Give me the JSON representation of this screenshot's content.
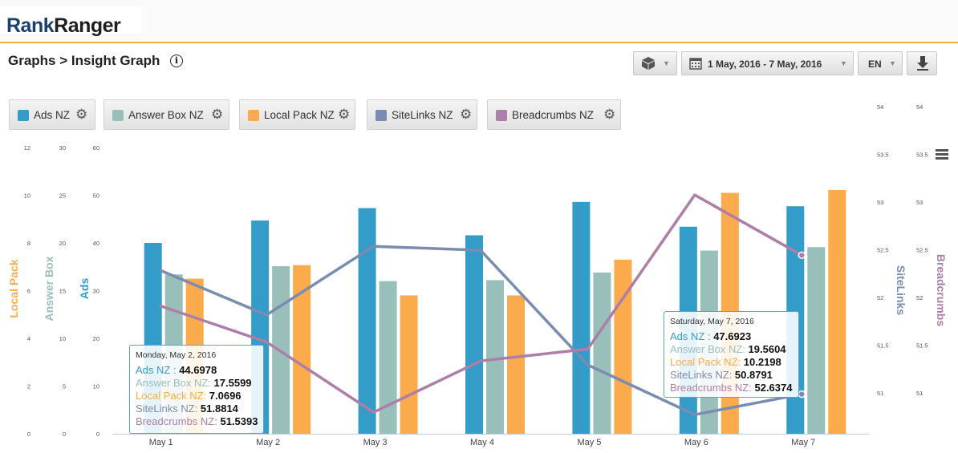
{
  "header": {
    "logo_rank": "Rank",
    "logo_ranger": "Ranger"
  },
  "page": {
    "title": "Graphs > Insight Graph",
    "info_icon": "info-icon"
  },
  "controls": {
    "date_range": "1 May, 2016 - 7 May, 2016",
    "language": "EN",
    "cube_icon": "cube-icon",
    "calendar_icon": "calendar-icon",
    "download_icon": "download-icon"
  },
  "legend": [
    {
      "label": "Ads NZ",
      "color": "#339cc8"
    },
    {
      "label": "Answer Box NZ",
      "color": "#98bfba"
    },
    {
      "label": "Local Pack NZ",
      "color": "#fbab4b"
    },
    {
      "label": "SiteLinks NZ",
      "color": "#7a8cb0"
    },
    {
      "label": "Breadcrumbs NZ",
      "color": "#ad7fa8"
    }
  ],
  "axes": {
    "local_pack": {
      "title": "Local Pack",
      "ticks": [
        "0",
        "2",
        "4",
        "6",
        "8",
        "10",
        "12"
      ]
    },
    "answer_box": {
      "title": "Answer Box",
      "ticks": [
        "0",
        "5",
        "10",
        "15",
        "20",
        "25",
        "30"
      ]
    },
    "ads": {
      "title": "Ads",
      "ticks": [
        "0",
        "10",
        "20",
        "30",
        "40",
        "50",
        "60"
      ]
    },
    "sitelinks": {
      "title": "SiteLinks",
      "ticks": [
        "51",
        "51.5",
        "52",
        "52.5",
        "53",
        "53.5",
        "54"
      ]
    },
    "breadcrumbs": {
      "title": "Breadcrumbs",
      "ticks": [
        "51",
        "51.5",
        "52",
        "52.5",
        "53",
        "53.5",
        "54"
      ]
    }
  },
  "chart_data": {
    "type": "bar",
    "categories": [
      "May 1",
      "May 2",
      "May 3",
      "May 4",
      "May 5",
      "May 6",
      "May 7"
    ],
    "series": [
      {
        "name": "Ads NZ",
        "type": "bar",
        "axis": "ads",
        "ylim": [
          0,
          60
        ],
        "color": "#339cc8",
        "values": [
          40.0,
          44.6978,
          47.3,
          41.6,
          48.6,
          43.4,
          47.6923
        ]
      },
      {
        "name": "Answer Box NZ",
        "type": "bar",
        "axis": "answer_box",
        "ylim": [
          0,
          30
        ],
        "color": "#98bfba",
        "values": [
          16.7,
          17.5599,
          16.0,
          16.1,
          16.9,
          19.2,
          19.5604
        ]
      },
      {
        "name": "Local Pack NZ",
        "type": "bar",
        "axis": "local_pack",
        "ylim": [
          0,
          12
        ],
        "color": "#fbab4b",
        "values": [
          6.5,
          7.0696,
          5.8,
          5.8,
          7.3,
          10.1,
          10.2198
        ]
      },
      {
        "name": "SiteLinks NZ",
        "type": "line",
        "axis": "sitelinks",
        "ylim": [
          50.5,
          54
        ],
        "color": "#7a8cb0",
        "values": [
          52.45,
          51.8814,
          52.75,
          52.7,
          51.25,
          50.62,
          50.8791
        ]
      },
      {
        "name": "Breadcrumbs NZ",
        "type": "line",
        "axis": "breadcrumbs",
        "ylim": [
          50.5,
          54
        ],
        "color": "#ad7fa8",
        "values": [
          52.0,
          51.5393,
          50.65,
          51.3,
          51.45,
          53.4,
          52.6374
        ]
      }
    ]
  },
  "tooltips": [
    {
      "date": "Monday, May 2, 2016",
      "rows": [
        {
          "label": "Ads NZ : ",
          "value": "44.6978",
          "color": "#339cc8"
        },
        {
          "label": "Answer Box NZ: ",
          "value": "17.5599",
          "color": "#98bfba"
        },
        {
          "label": "Local Pack NZ: ",
          "value": "7.0696",
          "color": "#fbab4b"
        },
        {
          "label": "SiteLinks NZ: ",
          "value": "51.8814",
          "color": "#7a8cb0"
        },
        {
          "label": "Breadcrumbs NZ: ",
          "value": "51.5393",
          "color": "#ad7fa8"
        }
      ]
    },
    {
      "date": "Saturday, May 7, 2016",
      "rows": [
        {
          "label": "Ads NZ : ",
          "value": "47.6923",
          "color": "#339cc8"
        },
        {
          "label": "Answer Box NZ: ",
          "value": "19.5604",
          "color": "#98bfba"
        },
        {
          "label": "Local Pack NZ: ",
          "value": "10.2198",
          "color": "#fbab4b"
        },
        {
          "label": "SiteLinks NZ: ",
          "value": "50.8791",
          "color": "#7a8cb0"
        },
        {
          "label": "Breadcrumbs NZ: ",
          "value": "52.6374",
          "color": "#ad7fa8"
        }
      ]
    }
  ]
}
